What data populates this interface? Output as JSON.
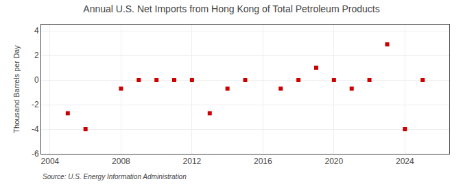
{
  "chart_data": {
    "type": "scatter",
    "title": "Annual U.S. Net Imports from Hong Kong of Total Petroleum Products",
    "y_label": "Thousand Barrels per Day",
    "annotations": [
      "Source: U.S. Energy Information Administration"
    ],
    "x": [
      2005,
      2006,
      2008,
      2009,
      2010,
      2011,
      2012,
      2013,
      2014,
      2015,
      2017,
      2018,
      2019,
      2020,
      2021,
      2022,
      2023,
      2024,
      2025
    ],
    "values": [
      -2.7,
      -4.0,
      -0.7,
      0.0,
      0.0,
      0.0,
      0.0,
      -2.7,
      -0.7,
      0.0,
      -0.7,
      0.0,
      1.0,
      0.0,
      -0.7,
      0.0,
      2.9,
      -4.0,
      0.0
    ],
    "color": "#cc0000",
    "marker": "square",
    "xlim": [
      2003.5,
      2026.5
    ],
    "ylim": [
      -6,
      4.5
    ],
    "xticks": [
      2004,
      2008,
      2012,
      2016,
      2020,
      2024
    ],
    "yticks": [
      -6,
      -4,
      -2,
      0,
      2,
      4
    ],
    "grid": true
  }
}
